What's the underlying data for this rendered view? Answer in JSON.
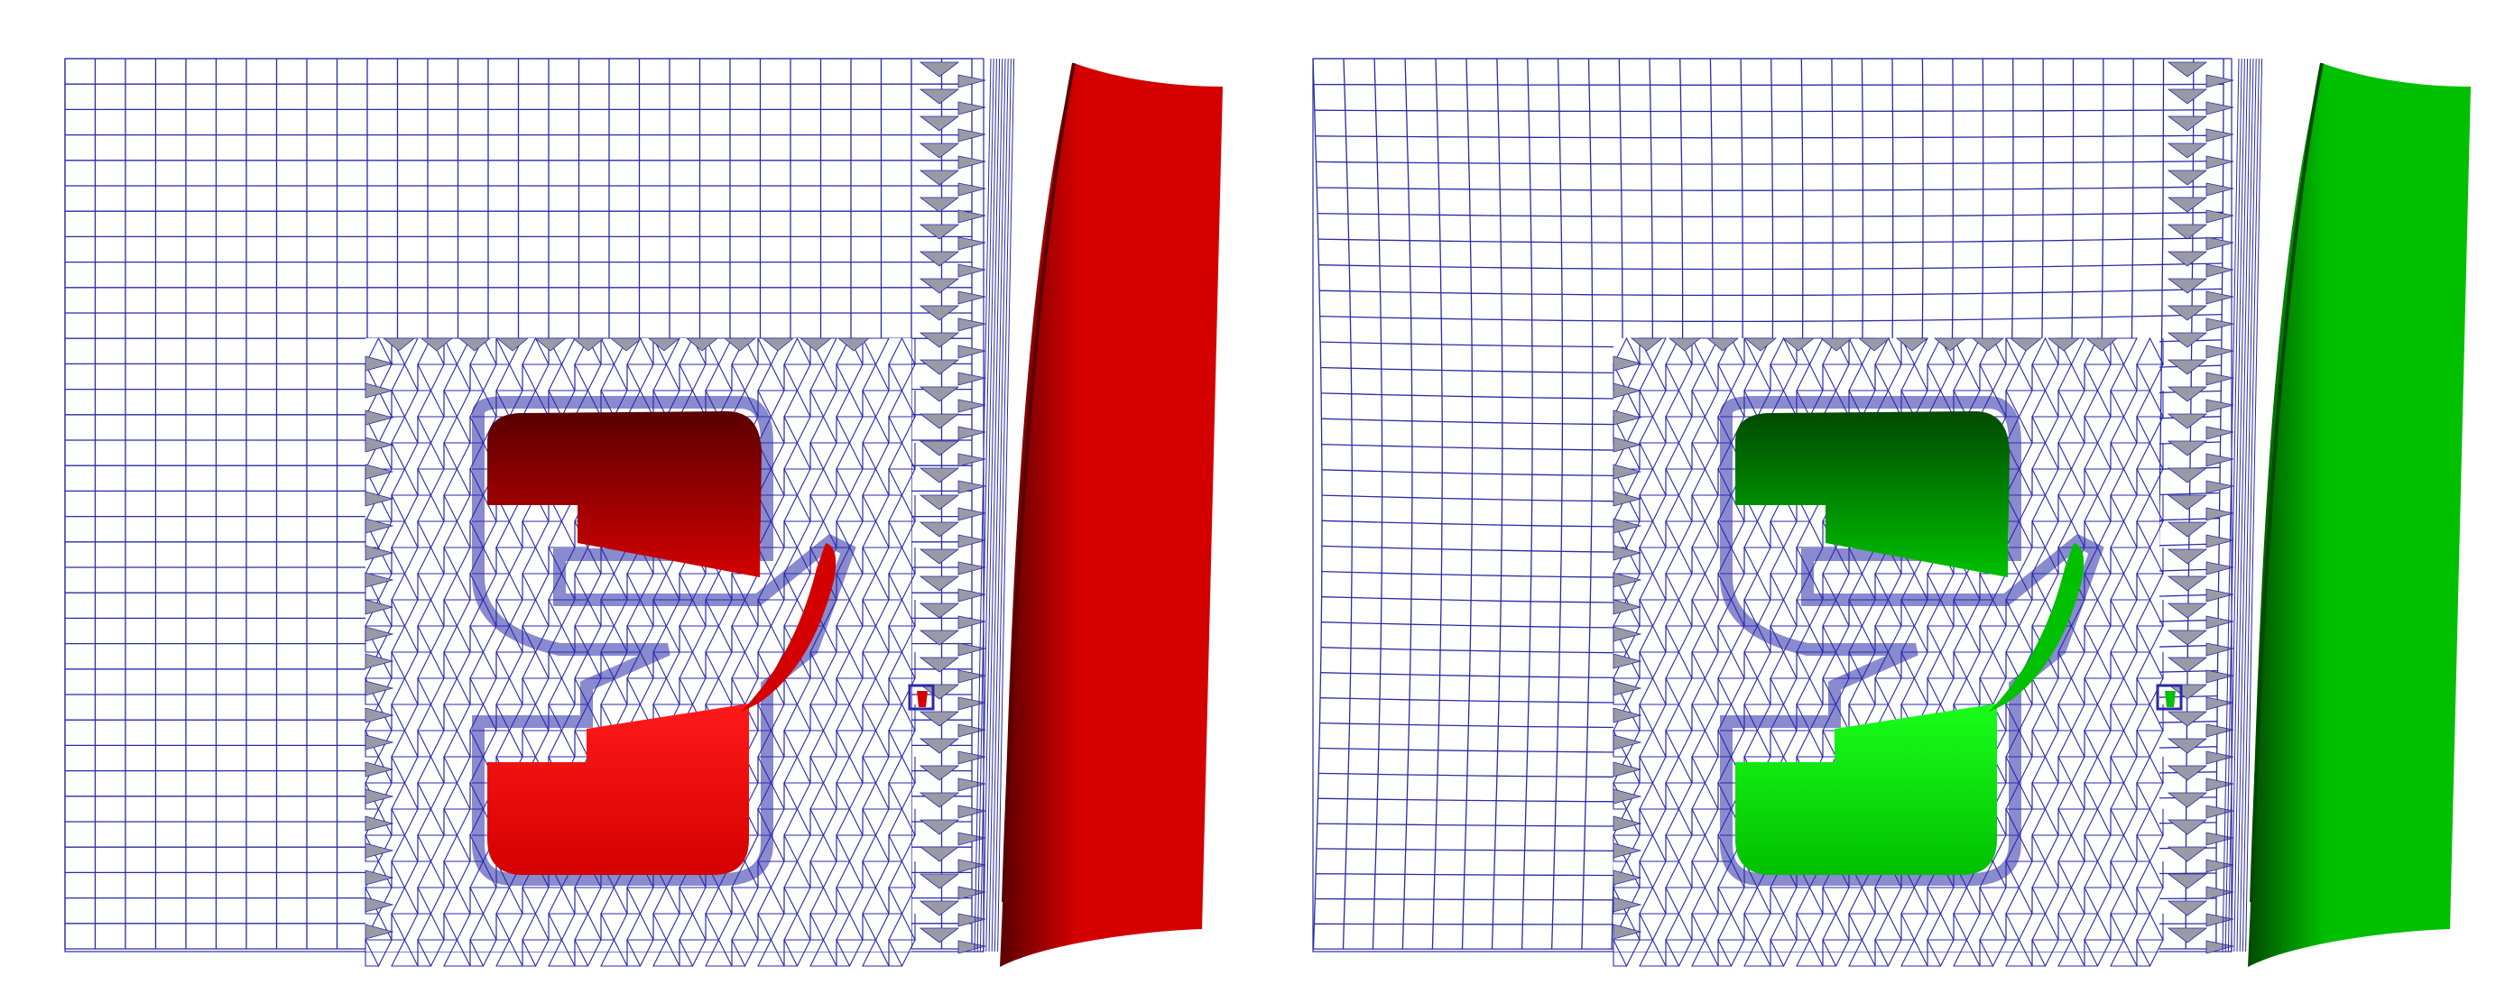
{
  "panels": [
    {
      "id": "left",
      "surface_color": "#d40000",
      "surface_dark": "#5a0000",
      "surface_light": "#ff1a1a",
      "mesh_color": "#2a2aa8",
      "mesh_style": "regular"
    },
    {
      "id": "right",
      "surface_color": "#00c000",
      "surface_dark": "#004a00",
      "surface_light": "#1aff1a",
      "mesh_color": "#2a2aa8",
      "mesh_style": "deformed"
    }
  ],
  "colors": {
    "background": "#ffffff",
    "shaded_triangle": "#9a9aa6"
  }
}
